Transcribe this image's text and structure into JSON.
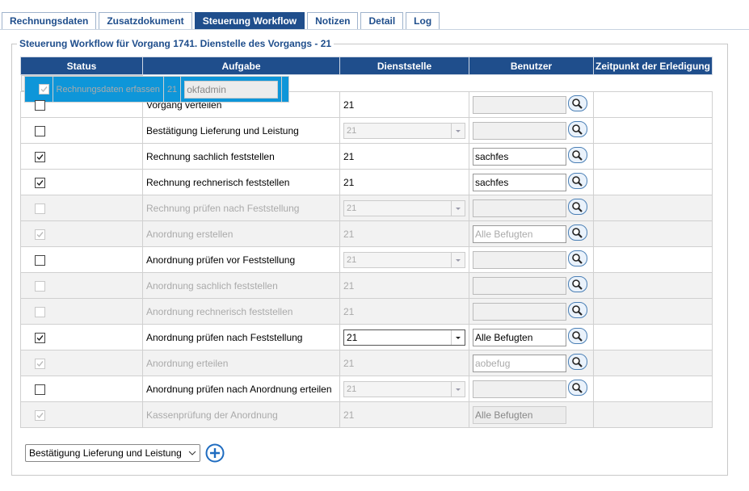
{
  "tabs": [
    "Rechnungsdaten",
    "Zusatzdokument",
    "Steuerung Workflow",
    "Notizen",
    "Detail",
    "Log"
  ],
  "fieldset_title": "Steuerung Workflow für Vorgang 1741. Dienstelle des Vorgangs - 21",
  "table": {
    "headers": [
      "Status",
      "Aufgabe",
      "Dienststelle",
      "Benutzer",
      "Zeitpunkt der Erledigung"
    ],
    "rows": [
      {
        "checked": true,
        "enabled": false,
        "selected": true,
        "task": "Rechnungsdaten erfassen",
        "department": "21",
        "department_select": false,
        "user": "okfadmin",
        "user_lookup": false
      },
      {
        "checked": false,
        "enabled": true,
        "task": "Vorgang verteilen",
        "department": "21",
        "department_select": false,
        "user": null,
        "user_lookup": true
      },
      {
        "checked": false,
        "enabled": true,
        "task": "Bestätigung Lieferung und Leistung",
        "department": "21",
        "department_select": true,
        "select_enabled": false,
        "user": null,
        "user_lookup": true
      },
      {
        "checked": true,
        "enabled": true,
        "task": "Rechnung sachlich feststellen",
        "department": "21",
        "department_select": false,
        "user": "sachfes",
        "user_lookup": true
      },
      {
        "checked": true,
        "enabled": true,
        "task": "Rechnung rechnerisch feststellen",
        "department": "21",
        "department_select": false,
        "user": "sachfes",
        "user_lookup": true
      },
      {
        "checked": false,
        "enabled": false,
        "task": "Rechnung prüfen nach Feststellung",
        "department": "21",
        "department_select": true,
        "select_enabled": false,
        "user": null,
        "user_lookup": true
      },
      {
        "checked": true,
        "enabled": false,
        "task": "Anordnung erstellen",
        "department": "21",
        "department_select": false,
        "user": "Alle Befugten",
        "user_lookup": true
      },
      {
        "checked": false,
        "enabled": true,
        "task": "Anordnung prüfen vor Feststellung",
        "department": "21",
        "department_select": true,
        "select_enabled": false,
        "user": null,
        "user_lookup": true
      },
      {
        "checked": false,
        "enabled": false,
        "task": "Anordnung sachlich feststellen",
        "department": "21",
        "department_select": false,
        "user": null,
        "user_lookup": true
      },
      {
        "checked": false,
        "enabled": false,
        "task": "Anordnung rechnerisch feststellen",
        "department": "21",
        "department_select": false,
        "user": null,
        "user_lookup": true
      },
      {
        "checked": true,
        "enabled": true,
        "task": "Anordnung prüfen nach Feststellung",
        "department": "21",
        "department_select": true,
        "select_enabled": true,
        "user": "Alle Befugten",
        "user_lookup": true
      },
      {
        "checked": true,
        "enabled": false,
        "task": "Anordnung erteilen",
        "department": "21",
        "department_select": false,
        "user": "aobefug",
        "user_lookup": true
      },
      {
        "checked": false,
        "enabled": true,
        "task": "Anordnung prüfen nach Anordnung erteilen",
        "department": "21",
        "department_select": true,
        "select_enabled": false,
        "user": null,
        "user_lookup": true
      },
      {
        "checked": true,
        "enabled": false,
        "task": "Kassenprüfung der Anordnung",
        "department": "21",
        "department_select": false,
        "user": "Alle Befugten",
        "user_lookup": false
      }
    ]
  },
  "add_task_select": "Bestätigung Lieferung und Leistung"
}
